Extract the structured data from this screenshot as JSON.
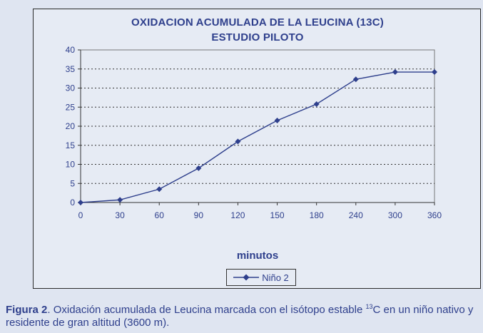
{
  "chart_data": {
    "type": "line",
    "title": "OXIDACION ACUMULADA DE LA LEUCINA (13C)",
    "subtitle": "ESTUDIO PILOTO",
    "xlabel": "minutos",
    "ylabel": "",
    "categories": [
      "0",
      "30",
      "60",
      "90",
      "120",
      "150",
      "180",
      "240",
      "300",
      "360"
    ],
    "series": [
      {
        "name": "Niño 2",
        "values": [
          0,
          0.7,
          3.5,
          9,
          16,
          21.5,
          25.8,
          32.3,
          34.2,
          34.2
        ]
      }
    ],
    "ylim": [
      0,
      40
    ],
    "yticks": [
      "0",
      "5",
      "10",
      "15",
      "20",
      "25",
      "30",
      "35",
      "40"
    ],
    "grid": true,
    "legend_position": "bottom",
    "line_color": "#2e3f8c"
  },
  "caption": {
    "label": "Figura 2",
    "text_before_sup": ". Oxidación acumulada de Leucina marcada con el isótopo estable ",
    "sup": "13",
    "text_after_sup": "C en un niño nativo y residente de gran altitud (3600 m)."
  }
}
